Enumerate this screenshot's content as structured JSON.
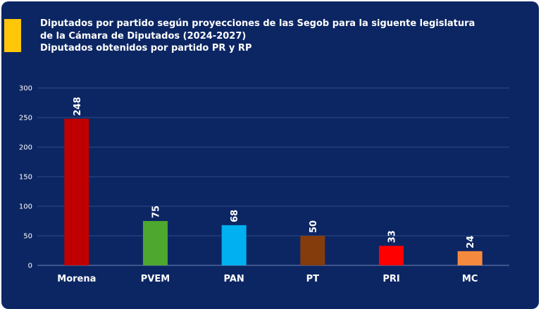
{
  "chart_data": {
    "type": "bar",
    "title": [
      "Diputados por partido según proyecciones de las Segob para la siguente legislatura",
      "de la Cámara de Diputados (2024-2027)",
      "Diputados obtenidos por partido PR y RP"
    ],
    "categories": [
      "Morena",
      "PVEM",
      "PAN",
      "PT",
      "PRI",
      "MC"
    ],
    "values": [
      248,
      75,
      68,
      50,
      33,
      24
    ],
    "colors": [
      "#c00000",
      "#4ea72e",
      "#00b0f0",
      "#843c0c",
      "#ff0000",
      "#f58a3e"
    ],
    "ylim": [
      0,
      300
    ],
    "yticks": [
      0,
      50,
      100,
      150,
      200,
      250,
      300
    ],
    "xlabel": "",
    "ylabel": "",
    "grid": true,
    "legend": "none"
  },
  "colors": {
    "background": "#0c2663",
    "accent": "#ffc60a",
    "text": "#ffffff"
  }
}
